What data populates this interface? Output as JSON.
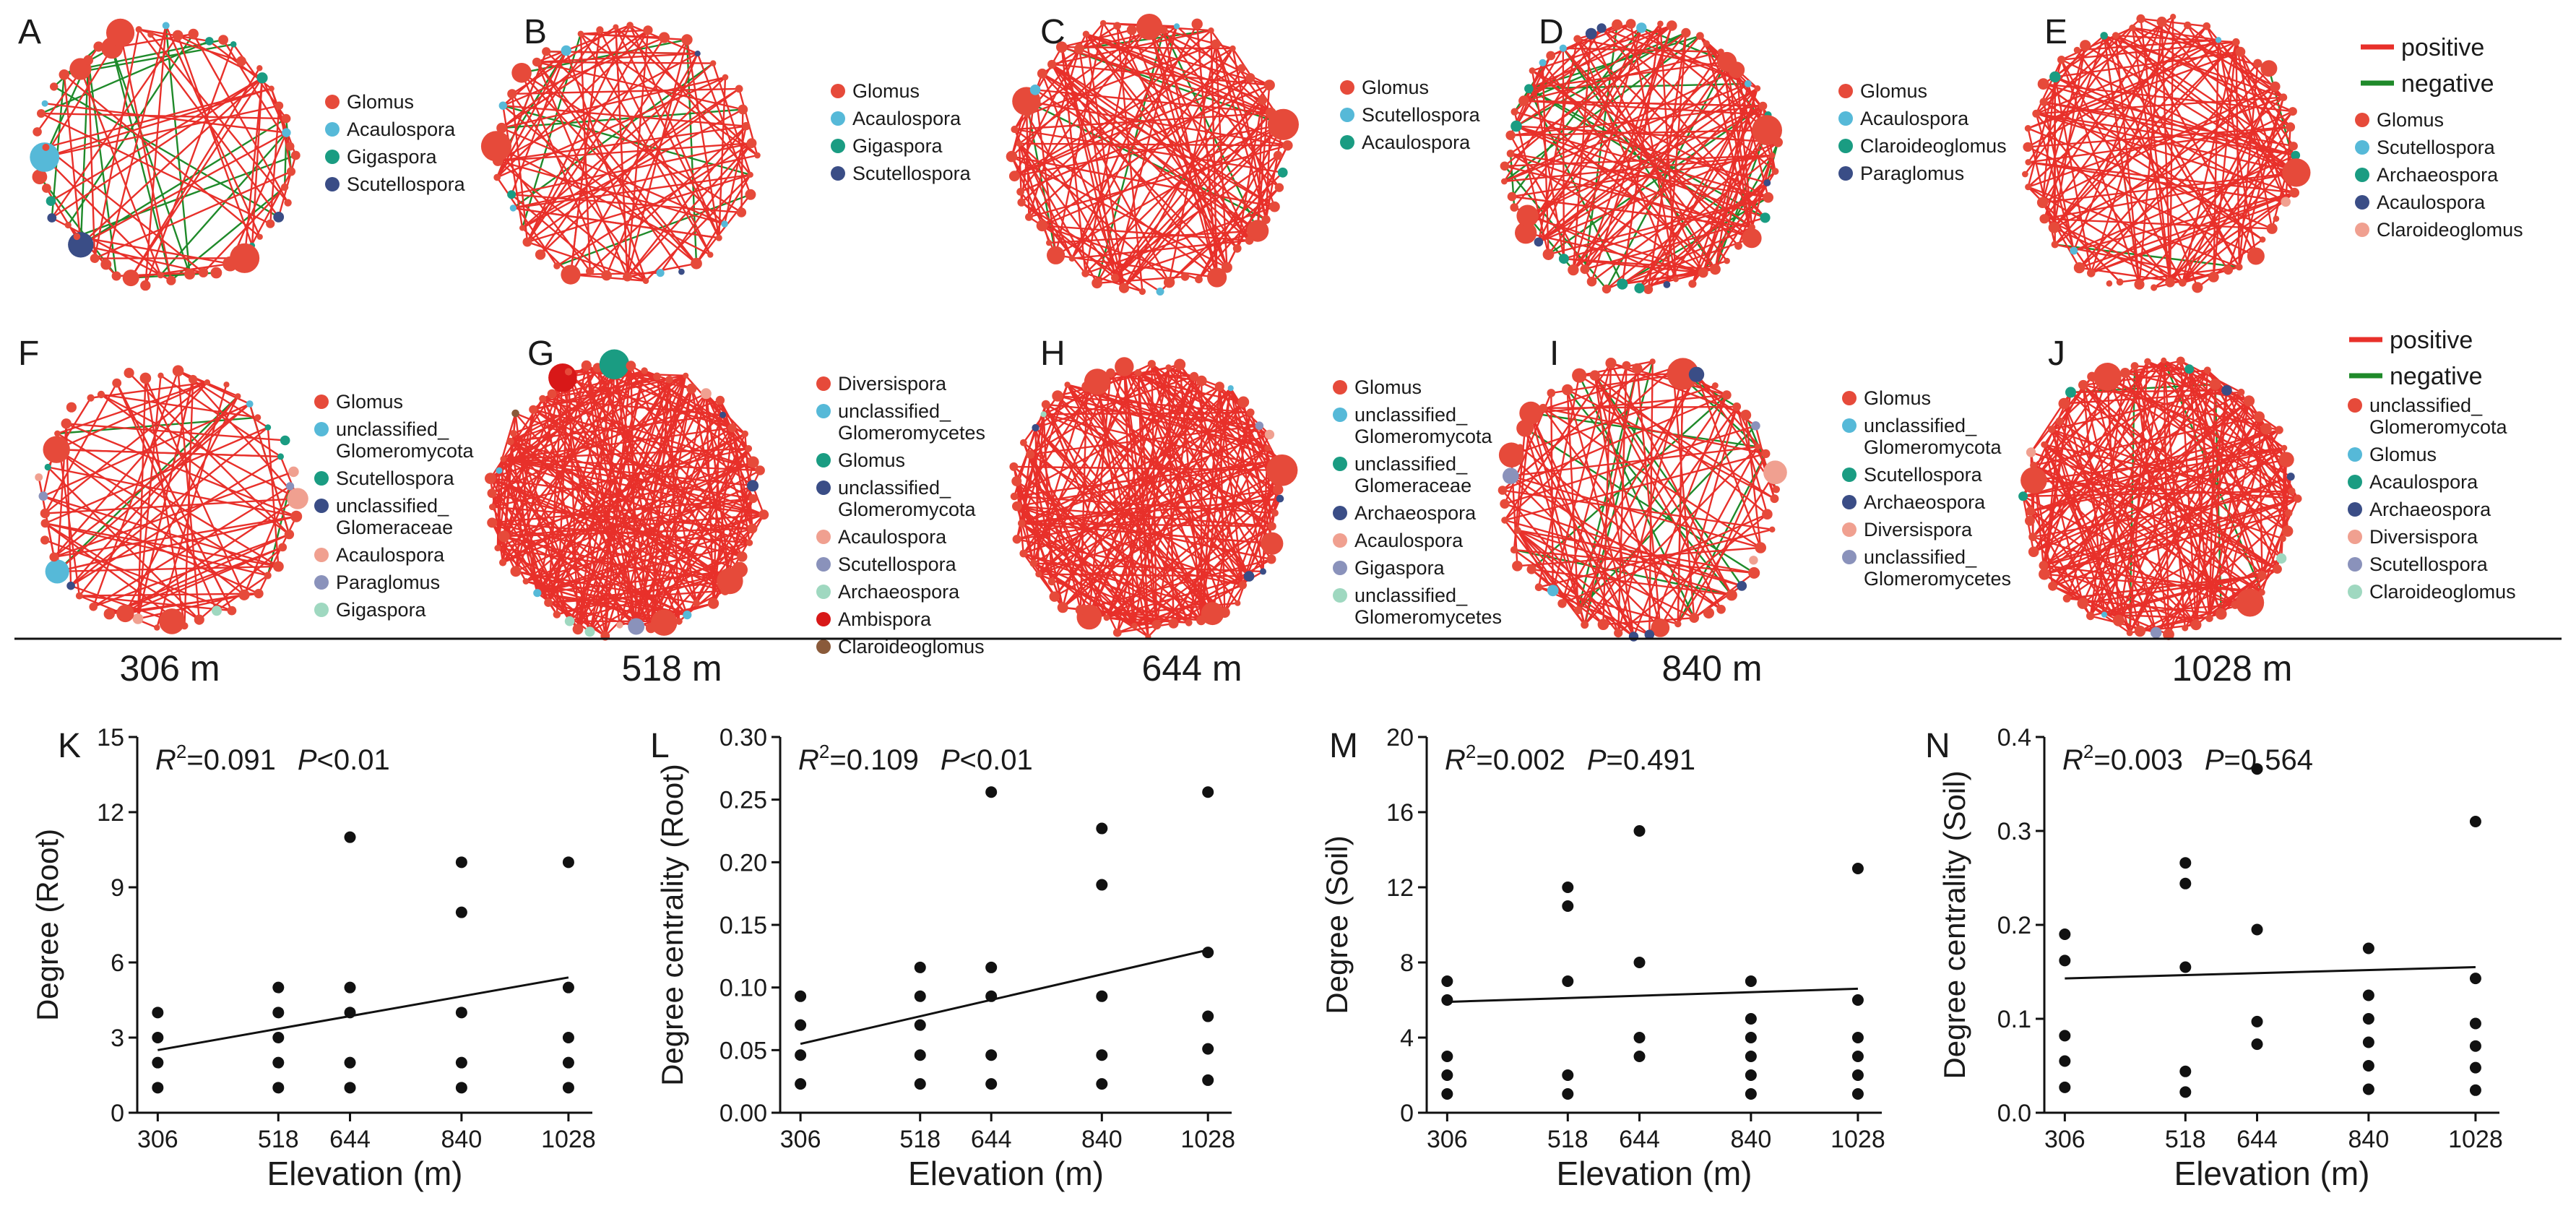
{
  "colors": {
    "positive": "#e8302a",
    "negative": "#1f8a2a",
    "ink": "#111111"
  },
  "edge_legend": {
    "positive": "positive",
    "negative": "negative"
  },
  "networks": [
    {
      "label": "A",
      "legend": [
        {
          "name": "Glomus",
          "color": "#e64a3a"
        },
        {
          "name": "Acaulospora",
          "color": "#56b9d8"
        },
        {
          "name": "Gigaspora",
          "color": "#1a9c82"
        },
        {
          "name": "Scutellospora",
          "color": "#3a4d86"
        }
      ]
    },
    {
      "label": "B",
      "legend": [
        {
          "name": "Glomus",
          "color": "#e64a3a"
        },
        {
          "name": "Acaulospora",
          "color": "#56b9d8"
        },
        {
          "name": "Gigaspora",
          "color": "#1a9c82"
        },
        {
          "name": "Scutellospora",
          "color": "#3a4d86"
        }
      ]
    },
    {
      "label": "C",
      "legend": [
        {
          "name": "Glomus",
          "color": "#e64a3a"
        },
        {
          "name": "Scutellospora",
          "color": "#56b9d8"
        },
        {
          "name": "Acaulospora",
          "color": "#1a9c82"
        }
      ]
    },
    {
      "label": "D",
      "legend": [
        {
          "name": "Glomus",
          "color": "#e64a3a"
        },
        {
          "name": "Acaulospora",
          "color": "#56b9d8"
        },
        {
          "name": "Claroideoglomus",
          "color": "#1a9c82"
        },
        {
          "name": "Paraglomus",
          "color": "#3a4d86"
        }
      ]
    },
    {
      "label": "E",
      "show_edge_legend": true,
      "legend": [
        {
          "name": "Glomus",
          "color": "#e64a3a"
        },
        {
          "name": "Scutellospora",
          "color": "#56b9d8"
        },
        {
          "name": "Archaeospora",
          "color": "#1a9c82"
        },
        {
          "name": "Acaulospora",
          "color": "#3a4d86"
        },
        {
          "name": "Claroideoglomus",
          "color": "#f0a090"
        }
      ]
    },
    {
      "label": "F",
      "legend": [
        {
          "name": "Glomus",
          "color": "#e64a3a"
        },
        {
          "name": "unclassified_\nGlomeromycota",
          "color": "#56b9d8"
        },
        {
          "name": "Scutellospora",
          "color": "#1a9c82"
        },
        {
          "name": "unclassified_\nGlomeraceae",
          "color": "#3a4d86"
        },
        {
          "name": "Acaulospora",
          "color": "#f0a090"
        },
        {
          "name": "Paraglomus",
          "color": "#8a92bb"
        },
        {
          "name": "Gigaspora",
          "color": "#9fd8c0"
        }
      ]
    },
    {
      "label": "G",
      "legend": [
        {
          "name": "Diversispora",
          "color": "#e64a3a"
        },
        {
          "name": "unclassified_\nGlomeromycetes",
          "color": "#56b9d8"
        },
        {
          "name": "Glomus",
          "color": "#1a9c82"
        },
        {
          "name": "unclassified_\nGlomeromycota",
          "color": "#3a4d86"
        },
        {
          "name": "Acaulospora",
          "color": "#f0a090"
        },
        {
          "name": "Scutellospora",
          "color": "#8a92bb"
        },
        {
          "name": "Archaeospora",
          "color": "#9fd8c0"
        },
        {
          "name": "Ambispora",
          "color": "#d81818"
        },
        {
          "name": "Claroideoglomus",
          "color": "#8a5a3a"
        }
      ]
    },
    {
      "label": "H",
      "legend": [
        {
          "name": "Glomus",
          "color": "#e64a3a"
        },
        {
          "name": "unclassified_\nGlomeromycota",
          "color": "#56b9d8"
        },
        {
          "name": "unclassified_\nGlomeraceae",
          "color": "#1a9c82"
        },
        {
          "name": "Archaeospora",
          "color": "#3a4d86"
        },
        {
          "name": "Acaulospora",
          "color": "#f0a090"
        },
        {
          "name": "Gigaspora",
          "color": "#8a92bb"
        },
        {
          "name": "unclassified_\nGlomeromycetes",
          "color": "#9fd8c0"
        }
      ]
    },
    {
      "label": "I",
      "legend": [
        {
          "name": "Glomus",
          "color": "#e64a3a"
        },
        {
          "name": "unclassified_\nGlomeromycota",
          "color": "#56b9d8"
        },
        {
          "name": "Scutellospora",
          "color": "#1a9c82"
        },
        {
          "name": "Archaeospora",
          "color": "#3a4d86"
        },
        {
          "name": "Diversispora",
          "color": "#f0a090"
        },
        {
          "name": "unclassified_\nGlomeromycetes",
          "color": "#8a92bb"
        }
      ]
    },
    {
      "label": "J",
      "show_edge_legend": true,
      "legend": [
        {
          "name": "unclassified_\nGlomeromycota",
          "color": "#e64a3a"
        },
        {
          "name": "Glomus",
          "color": "#56b9d8"
        },
        {
          "name": "Acaulospora",
          "color": "#1a9c82"
        },
        {
          "name": "Archaeospora",
          "color": "#3a4d86"
        },
        {
          "name": "Diversispora",
          "color": "#f0a090"
        },
        {
          "name": "Scutellospora",
          "color": "#8a92bb"
        },
        {
          "name": "Claroideoglomus",
          "color": "#9fd8c0"
        }
      ]
    }
  ],
  "elevation_labels": [
    "306 m",
    "518 m",
    "644 m",
    "840 m",
    "1028 m"
  ],
  "chart_data": [
    {
      "type": "scatter",
      "label": "K",
      "r2": "0.091",
      "p_op": "<",
      "p_value": "0.01",
      "xlabel": "Elevation (m)",
      "ylabel": "Degree (Root)",
      "xticks": [
        306,
        518,
        644,
        840,
        1028
      ],
      "xlim": [
        270,
        1070
      ],
      "ylim": [
        0,
        15
      ],
      "yticks": [
        0,
        3,
        6,
        9,
        12,
        15
      ],
      "ytick_labels": [
        "0",
        "3",
        "6",
        "9",
        "12",
        "15"
      ],
      "points": [
        [
          306,
          1
        ],
        [
          306,
          2
        ],
        [
          306,
          3
        ],
        [
          306,
          4
        ],
        [
          518,
          1
        ],
        [
          518,
          2
        ],
        [
          518,
          3
        ],
        [
          518,
          4
        ],
        [
          518,
          5
        ],
        [
          644,
          1
        ],
        [
          644,
          2
        ],
        [
          644,
          4
        ],
        [
          644,
          5
        ],
        [
          644,
          11
        ],
        [
          840,
          1
        ],
        [
          840,
          2
        ],
        [
          840,
          4
        ],
        [
          840,
          8
        ],
        [
          840,
          10
        ],
        [
          1028,
          1
        ],
        [
          1028,
          2
        ],
        [
          1028,
          3
        ],
        [
          1028,
          5
        ],
        [
          1028,
          10
        ]
      ],
      "fit": [
        [
          306,
          2.5
        ],
        [
          1028,
          5.4
        ]
      ]
    },
    {
      "type": "scatter",
      "label": "L",
      "r2": "0.109",
      "p_op": "<",
      "p_value": "0.01",
      "xlabel": "Elevation (m)",
      "ylabel": "Degree centrality (Root)",
      "xticks": [
        306,
        518,
        644,
        840,
        1028
      ],
      "xlim": [
        270,
        1070
      ],
      "ylim": [
        0,
        0.3
      ],
      "yticks": [
        0,
        0.05,
        0.1,
        0.15,
        0.2,
        0.25,
        0.3
      ],
      "ytick_labels": [
        "0.00",
        "0.05",
        "0.10",
        "0.15",
        "0.20",
        "0.25",
        "0.30"
      ],
      "points": [
        [
          306,
          0.023
        ],
        [
          306,
          0.046
        ],
        [
          306,
          0.07
        ],
        [
          306,
          0.093
        ],
        [
          518,
          0.023
        ],
        [
          518,
          0.046
        ],
        [
          518,
          0.07
        ],
        [
          518,
          0.093
        ],
        [
          518,
          0.116
        ],
        [
          644,
          0.023
        ],
        [
          644,
          0.046
        ],
        [
          644,
          0.093
        ],
        [
          644,
          0.116
        ],
        [
          644,
          0.256
        ],
        [
          840,
          0.023
        ],
        [
          840,
          0.046
        ],
        [
          840,
          0.093
        ],
        [
          840,
          0.182
        ],
        [
          840,
          0.227
        ],
        [
          1028,
          0.026
        ],
        [
          1028,
          0.051
        ],
        [
          1028,
          0.077
        ],
        [
          1028,
          0.128
        ],
        [
          1028,
          0.256
        ]
      ],
      "fit": [
        [
          306,
          0.055
        ],
        [
          1028,
          0.13
        ]
      ]
    },
    {
      "type": "scatter",
      "label": "M",
      "r2": "0.002",
      "p_op": "=",
      "p_value": "0.491",
      "xlabel": "Elevation (m)",
      "ylabel": "Degree (Soil)",
      "xticks": [
        306,
        518,
        644,
        840,
        1028
      ],
      "xlim": [
        270,
        1070
      ],
      "ylim": [
        0,
        20
      ],
      "yticks": [
        0,
        4,
        8,
        12,
        16,
        20
      ],
      "ytick_labels": [
        "0",
        "4",
        "8",
        "12",
        "16",
        "20"
      ],
      "points": [
        [
          306,
          1
        ],
        [
          306,
          2
        ],
        [
          306,
          3
        ],
        [
          306,
          6
        ],
        [
          306,
          7
        ],
        [
          518,
          1
        ],
        [
          518,
          2
        ],
        [
          518,
          7
        ],
        [
          518,
          11
        ],
        [
          518,
          12
        ],
        [
          644,
          3
        ],
        [
          644,
          4
        ],
        [
          644,
          8
        ],
        [
          644,
          15
        ],
        [
          840,
          1
        ],
        [
          840,
          2
        ],
        [
          840,
          3
        ],
        [
          840,
          4
        ],
        [
          840,
          5
        ],
        [
          840,
          7
        ],
        [
          1028,
          1
        ],
        [
          1028,
          2
        ],
        [
          1028,
          3
        ],
        [
          1028,
          4
        ],
        [
          1028,
          6
        ],
        [
          1028,
          13
        ]
      ],
      "fit": [
        [
          306,
          5.9
        ],
        [
          1028,
          6.6
        ]
      ]
    },
    {
      "type": "scatter",
      "label": "N",
      "r2": "0.003",
      "p_op": "=",
      "p_value": "0.564",
      "xlabel": "Elevation (m)",
      "ylabel": "Degree centrality (Soil)",
      "xticks": [
        306,
        518,
        644,
        840,
        1028
      ],
      "xlim": [
        270,
        1070
      ],
      "ylim": [
        0,
        0.4
      ],
      "yticks": [
        0,
        0.1,
        0.2,
        0.3,
        0.4
      ],
      "ytick_labels": [
        "0.0",
        "0.1",
        "0.2",
        "0.3",
        "0.4"
      ],
      "points": [
        [
          306,
          0.027
        ],
        [
          306,
          0.055
        ],
        [
          306,
          0.082
        ],
        [
          306,
          0.162
        ],
        [
          306,
          0.19
        ],
        [
          518,
          0.022
        ],
        [
          518,
          0.044
        ],
        [
          518,
          0.155
        ],
        [
          518,
          0.244
        ],
        [
          518,
          0.266
        ],
        [
          644,
          0.073
        ],
        [
          644,
          0.097
        ],
        [
          644,
          0.195
        ],
        [
          644,
          0.366
        ],
        [
          840,
          0.025
        ],
        [
          840,
          0.05
        ],
        [
          840,
          0.075
        ],
        [
          840,
          0.1
        ],
        [
          840,
          0.125
        ],
        [
          840,
          0.175
        ],
        [
          1028,
          0.024
        ],
        [
          1028,
          0.048
        ],
        [
          1028,
          0.071
        ],
        [
          1028,
          0.095
        ],
        [
          1028,
          0.143
        ],
        [
          1028,
          0.31
        ]
      ],
      "fit": [
        [
          306,
          0.143
        ],
        [
          1028,
          0.155
        ]
      ]
    }
  ]
}
